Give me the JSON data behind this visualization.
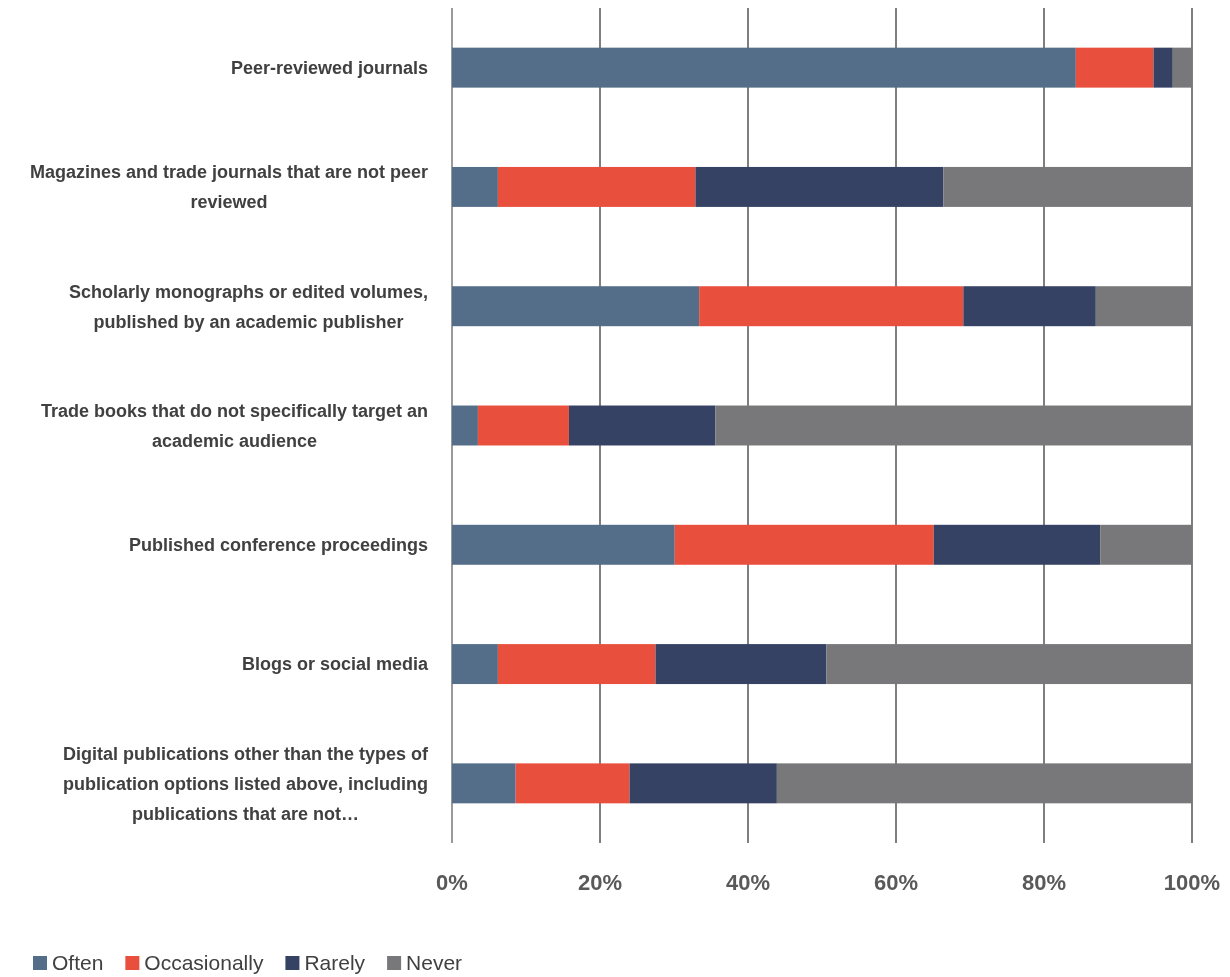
{
  "chart_data": {
    "type": "bar",
    "orientation": "horizontal",
    "stacked": true,
    "categories": [
      "Peer-reviewed journals",
      "Magazines and trade journals that are not peer reviewed",
      "Scholarly monographs or edited volumes, published by an academic publisher",
      "Trade books that do not specifically target an academic audience",
      "Published conference proceedings",
      "Blogs or social media",
      "Digital publications other than the types of publication options listed above, including publications that are not…"
    ],
    "series": [
      {
        "name": "Often",
        "color": "#546e8a",
        "values": [
          84.3,
          6.2,
          33.4,
          3.5,
          30.1,
          6.2,
          8.6
        ]
      },
      {
        "name": "Occasionally",
        "color": "#e94f3d",
        "values": [
          10.5,
          26.7,
          35.7,
          12.3,
          35.0,
          21.3,
          15.4
        ]
      },
      {
        "name": "Rarely",
        "color": "#354264",
        "values": [
          2.6,
          33.5,
          17.9,
          19.8,
          22.5,
          23.1,
          19.9
        ]
      },
      {
        "name": "Never",
        "color": "#78787b",
        "values": [
          2.6,
          33.6,
          13.0,
          64.4,
          12.4,
          49.4,
          56.1
        ]
      }
    ],
    "xlim": [
      0,
      100
    ],
    "xticks": [
      {
        "value": 0,
        "label": "0%"
      },
      {
        "value": 20,
        "label": "20%"
      },
      {
        "value": 40,
        "label": "40%"
      },
      {
        "value": 60,
        "label": "60%"
      },
      {
        "value": 80,
        "label": "80%"
      },
      {
        "value": 100,
        "label": "100%"
      }
    ],
    "grid": "x",
    "legend": "bottom"
  }
}
